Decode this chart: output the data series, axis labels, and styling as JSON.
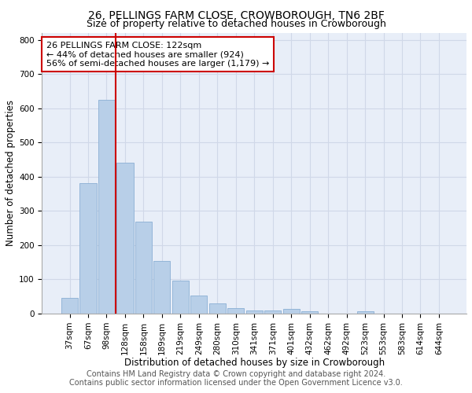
{
  "title1": "26, PELLINGS FARM CLOSE, CROWBOROUGH, TN6 2BF",
  "title2": "Size of property relative to detached houses in Crowborough",
  "xlabel": "Distribution of detached houses by size in Crowborough",
  "ylabel": "Number of detached properties",
  "categories": [
    "37sqm",
    "67sqm",
    "98sqm",
    "128sqm",
    "158sqm",
    "189sqm",
    "219sqm",
    "249sqm",
    "280sqm",
    "310sqm",
    "341sqm",
    "371sqm",
    "401sqm",
    "432sqm",
    "462sqm",
    "492sqm",
    "523sqm",
    "553sqm",
    "583sqm",
    "614sqm",
    "644sqm"
  ],
  "values": [
    45,
    382,
    625,
    440,
    268,
    154,
    96,
    52,
    29,
    17,
    10,
    10,
    15,
    7,
    0,
    0,
    8,
    0,
    0,
    0,
    0
  ],
  "bar_color": "#b8cfe8",
  "bar_edge_color": "#8aafd4",
  "vline_x_index": 2,
  "vline_color": "#cc0000",
  "annotation_text": "26 PELLINGS FARM CLOSE: 122sqm\n← 44% of detached houses are smaller (924)\n56% of semi-detached houses are larger (1,179) →",
  "annotation_box_color": "#ffffff",
  "annotation_box_edge": "#cc0000",
  "footer1": "Contains HM Land Registry data © Crown copyright and database right 2024.",
  "footer2": "Contains public sector information licensed under the Open Government Licence v3.0.",
  "ylim": [
    0,
    820
  ],
  "yticks": [
    0,
    100,
    200,
    300,
    400,
    500,
    600,
    700,
    800
  ],
  "grid_color": "#d0d8e8",
  "bg_color": "#e8eef8",
  "title1_fontsize": 10,
  "title2_fontsize": 9,
  "xlabel_fontsize": 8.5,
  "ylabel_fontsize": 8.5,
  "tick_fontsize": 7.5,
  "annotation_fontsize": 8,
  "footer_fontsize": 7
}
